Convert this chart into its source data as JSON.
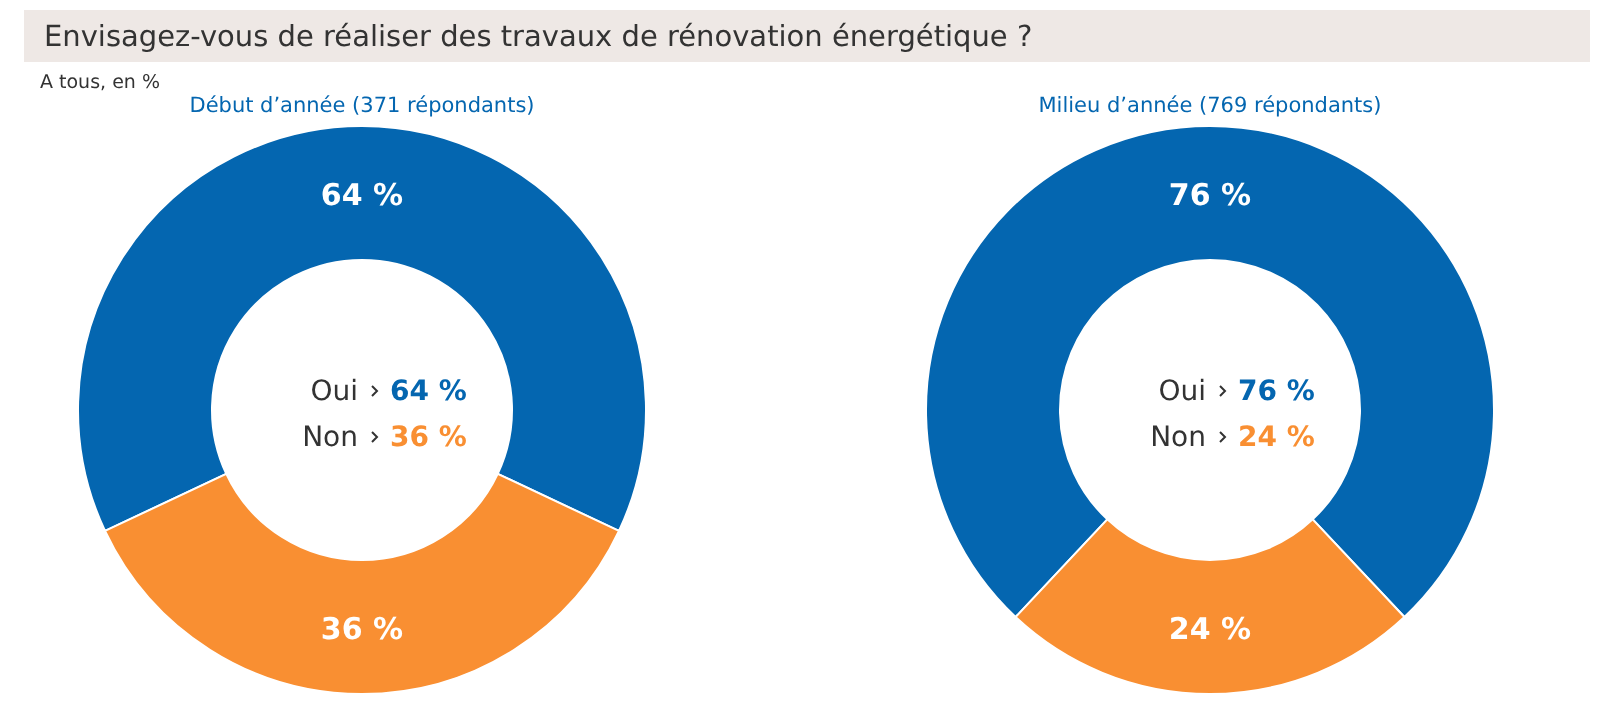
{
  "chart_data": [
    {
      "type": "donut",
      "title": "Début d’année (371 répondants)",
      "annotations": [
        "Envisagez-vous de réaliser des travaux de rénovation énergétique ?",
        "A tous, en %"
      ],
      "categories": [
        "Oui",
        "Non"
      ],
      "values": [
        64,
        36
      ],
      "colors": [
        "#0466b0",
        "#f98f32"
      ],
      "value_labels": [
        "64 %",
        "36 %"
      ]
    },
    {
      "type": "donut",
      "title": "Milieu d’année (769 répondants)",
      "categories": [
        "Oui",
        "Non"
      ],
      "values": [
        76,
        24
      ],
      "colors": [
        "#0466b0",
        "#f98f32"
      ],
      "value_labels": [
        "76 %",
        "24 %"
      ]
    }
  ]
}
